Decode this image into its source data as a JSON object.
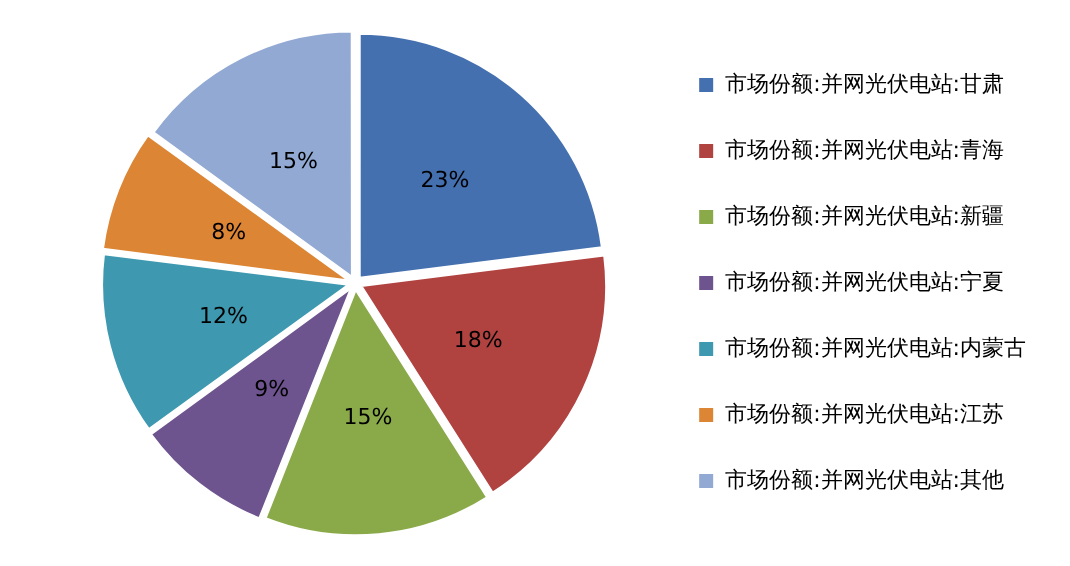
{
  "chart_data": {
    "type": "pie",
    "categories": [
      "市场份额:并网光伏电站:甘肃",
      "市场份额:并网光伏电站:青海",
      "市场份额:并网光伏电站:新疆",
      "市场份额:并网光伏电站:宁夏",
      "市场份额:并网光伏电站:内蒙古",
      "市场份额:并网光伏电站:江苏",
      "市场份额:并网光伏电站:其他"
    ],
    "values": [
      23,
      18,
      15,
      9,
      12,
      8,
      15
    ],
    "colors": [
      "#4470b0",
      "#b04240",
      "#8aaa4a",
      "#6e548e",
      "#3d98b0",
      "#dc8535",
      "#91a9d3"
    ],
    "value_labels": [
      "23%",
      "18%",
      "15%",
      "9%",
      "12%",
      "8%",
      "15%"
    ],
    "legend": "right"
  }
}
